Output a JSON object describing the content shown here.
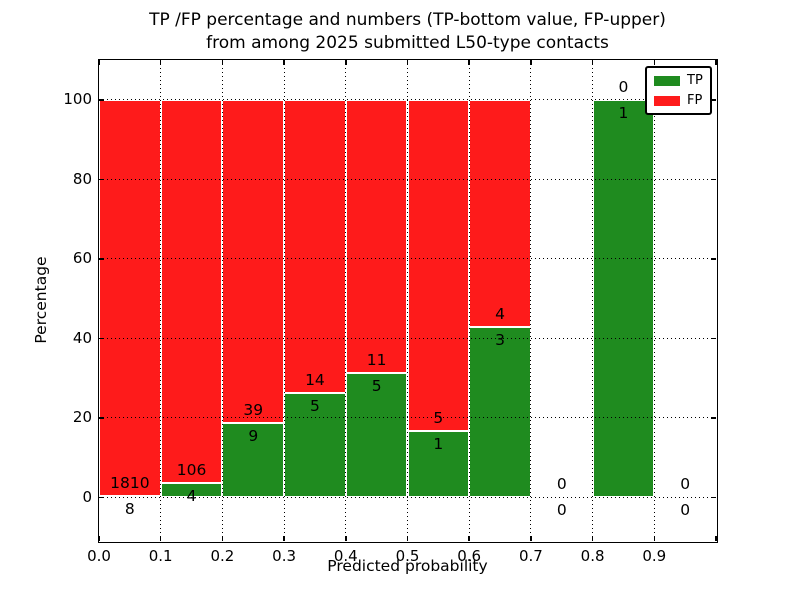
{
  "chart_data": {
    "type": "bar",
    "stacked": true,
    "normalization": "percent_of_bin_total",
    "title": "TP /FP percentage and numbers (TP-bottom value, FP-upper)\nfrom among 2025 submitted L50-type contacts",
    "title_line1": "TP /FP percentage and numbers (TP-bottom value, FP-upper)",
    "title_line2": "from among 2025 submitted L50-type contacts",
    "xlabel": "Predicted probability",
    "ylabel": "Percentage",
    "xlim": [
      0.0,
      1.0
    ],
    "ylim": [
      -11,
      110
    ],
    "grid": "dotted",
    "legend_position": "upper right",
    "categories": [
      "0.0-0.1",
      "0.1-0.2",
      "0.2-0.3",
      "0.3-0.4",
      "0.4-0.5",
      "0.5-0.6",
      "0.6-0.7",
      "0.7-0.8",
      "0.8-0.9",
      "0.9-1.0"
    ],
    "bin_edges": [
      0.0,
      0.1,
      0.2,
      0.3,
      0.4,
      0.5,
      0.6,
      0.7,
      0.8,
      0.9,
      1.0
    ],
    "x_tick_values": [
      0.0,
      0.1,
      0.2,
      0.3,
      0.4,
      0.5,
      0.6,
      0.7,
      0.8,
      0.9,
      1.0
    ],
    "x_tick_labels": [
      "0.0",
      "0.1",
      "0.2",
      "0.3",
      "0.4",
      "0.5",
      "0.6",
      "0.7",
      "0.8",
      "0.9",
      ""
    ],
    "y_tick_values": [
      0,
      20,
      40,
      60,
      80,
      100
    ],
    "y_tick_labels": [
      "0",
      "20",
      "40",
      "60",
      "80",
      "100"
    ],
    "series": [
      {
        "name": "TP",
        "color": "#1f8b1f",
        "values": [
          8,
          4,
          9,
          5,
          5,
          1,
          3,
          0,
          1,
          0
        ]
      },
      {
        "name": "FP",
        "color": "#fe1b1b",
        "values": [
          1810,
          106,
          39,
          14,
          11,
          5,
          4,
          0,
          0,
          0
        ]
      }
    ],
    "tp_percent_of_bin": [
      0.44,
      3.64,
      18.75,
      26.32,
      31.25,
      16.67,
      42.86,
      0,
      100,
      0
    ],
    "value_labels_note": "FP count printed above the TP/FP boundary, TP count printed below it",
    "total_contacts_in_title": "2025"
  }
}
